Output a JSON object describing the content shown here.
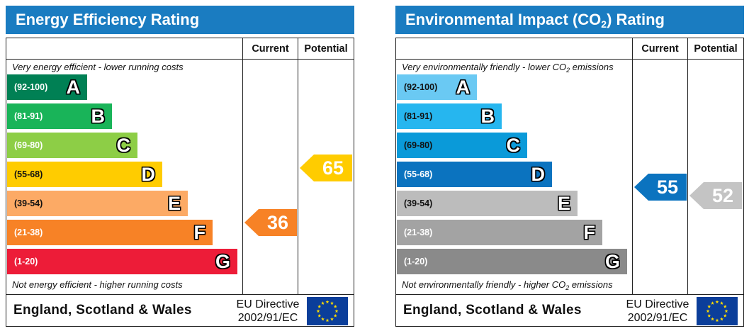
{
  "energy": {
    "title": "Energy Efficiency Rating",
    "col_current": "Current",
    "col_potential": "Potential",
    "top_note": "Very energy efficient - lower running costs",
    "bottom_note": "Not energy efficient - higher running costs",
    "bands": [
      {
        "range": "(92-100)",
        "letter": "A",
        "color": "#008054"
      },
      {
        "range": "(81-91)",
        "letter": "B",
        "color": "#19b459"
      },
      {
        "range": "(69-80)",
        "letter": "C",
        "color": "#8dce46"
      },
      {
        "range": "(55-68)",
        "letter": "D",
        "color": "#ffcc00"
      },
      {
        "range": "(39-54)",
        "letter": "E",
        "color": "#fcaa65"
      },
      {
        "range": "(21-38)",
        "letter": "F",
        "color": "#f78226"
      },
      {
        "range": "(1-20)",
        "letter": "G",
        "color": "#ed1c38"
      }
    ],
    "current": {
      "value": "36",
      "color": "#f78226"
    },
    "potential": {
      "value": "65",
      "color": "#ffcc00"
    },
    "region": "England, Scotland & Wales",
    "directive_line1": "EU Directive",
    "directive_line2": "2002/91/EC"
  },
  "environment": {
    "title_pre": "Environmental Impact (CO",
    "title_sub": "2",
    "title_post": ") Rating",
    "col_current": "Current",
    "col_potential": "Potential",
    "top_note_pre": "Very environmentally friendly - lower CO",
    "top_note_sub": "2",
    "top_note_post": " emissions",
    "bottom_note_pre": "Not environmentally friendly - higher CO",
    "bottom_note_sub": "2",
    "bottom_note_post": " emissions",
    "bands": [
      {
        "range": "(92-100)",
        "letter": "A",
        "color": "#6ac9f3"
      },
      {
        "range": "(81-91)",
        "letter": "B",
        "color": "#26b6ef"
      },
      {
        "range": "(69-80)",
        "letter": "C",
        "color": "#0a9ad9"
      },
      {
        "range": "(55-68)",
        "letter": "D",
        "color": "#0b73bf"
      },
      {
        "range": "(39-54)",
        "letter": "E",
        "color": "#bcbcbc"
      },
      {
        "range": "(21-38)",
        "letter": "F",
        "color": "#a3a3a3"
      },
      {
        "range": "(1-20)",
        "letter": "G",
        "color": "#8a8a8a"
      }
    ],
    "current": {
      "value": "55",
      "color": "#0b73bf"
    },
    "potential": {
      "value": "52",
      "color": "#c4c4c4"
    },
    "region": "England, Scotland & Wales",
    "directive_line1": "EU Directive",
    "directive_line2": "2002/91/EC"
  }
}
